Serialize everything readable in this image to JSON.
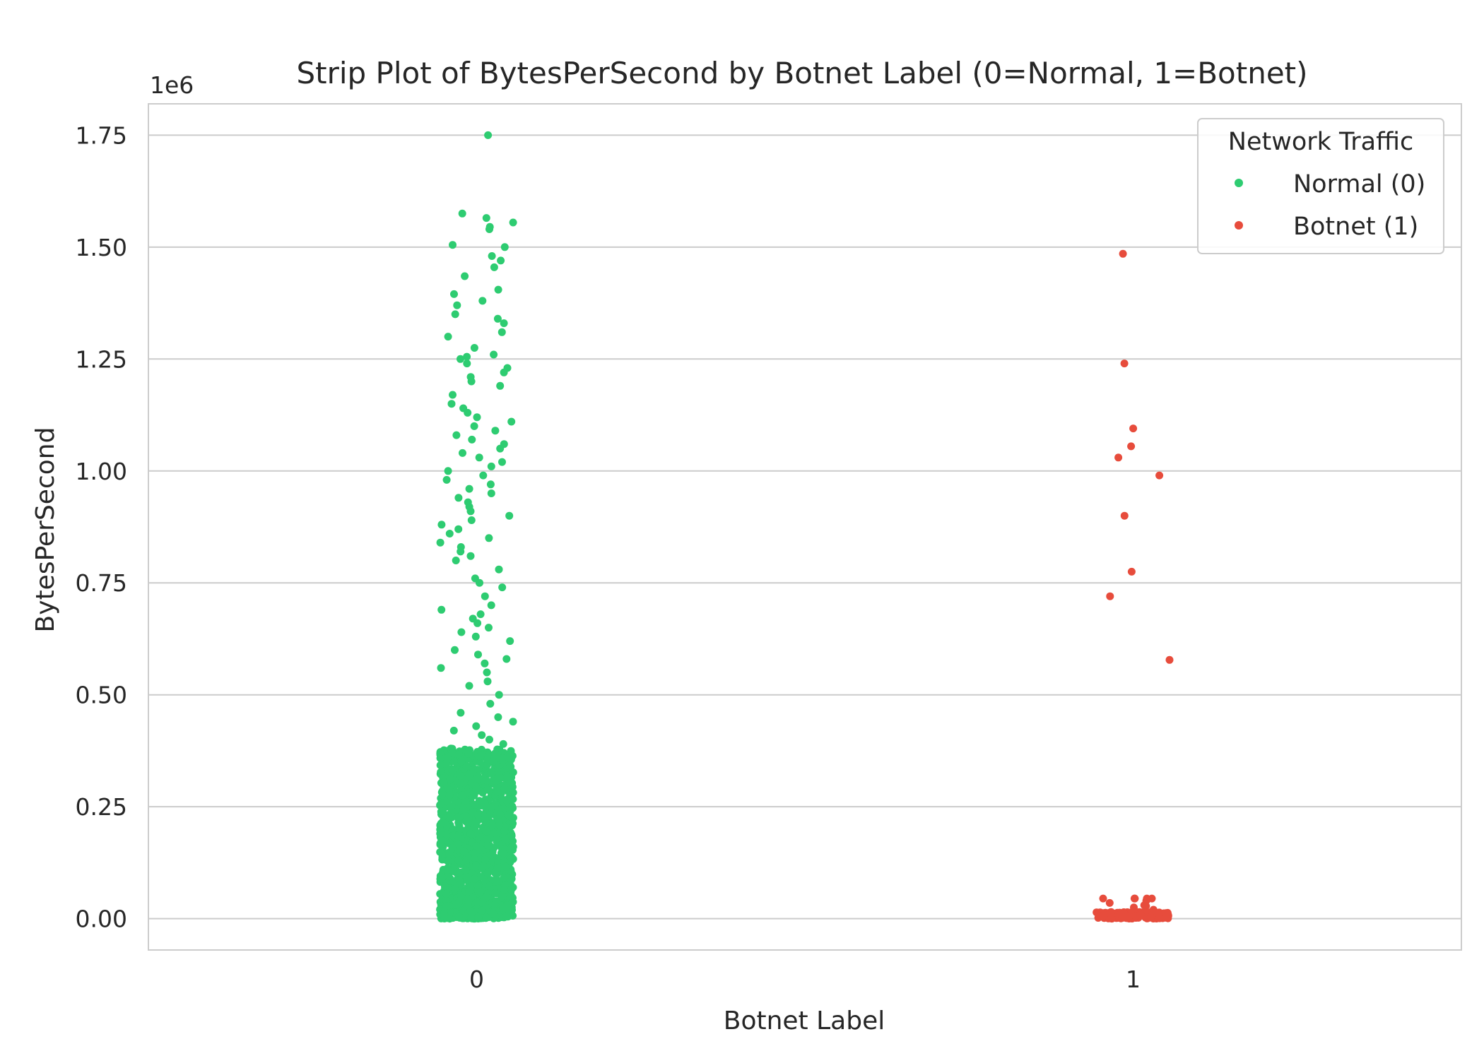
{
  "chart_data": {
    "type": "scatter",
    "subtype": "strip",
    "title": "Strip Plot of BytesPerSecond by Botnet Label (0=Normal, 1=Botnet)",
    "xlabel": "Botnet Label",
    "ylabel": "BytesPerSecond",
    "y_offset_label": "1e6",
    "y_scale_multiplier": 1000000,
    "categories": [
      "0",
      "1"
    ],
    "ylim": [
      -0.07,
      1.82
    ],
    "yticks": [
      0.0,
      0.25,
      0.5,
      0.75,
      1.0,
      1.25,
      1.5,
      1.75
    ],
    "ytick_labels": [
      "0.00",
      "0.25",
      "0.50",
      "0.75",
      "1.00",
      "1.25",
      "1.50",
      "1.75"
    ],
    "grid": "horizontal",
    "legend": {
      "title": "Network Traffic",
      "placement": "top-right",
      "entries": [
        "Normal (0)",
        "Botnet (1)"
      ]
    },
    "series": [
      {
        "name": "Normal (0)",
        "category": "0",
        "color": "#2ecc71",
        "values_sample": [
          1.75,
          1.575,
          1.565,
          1.555,
          1.545,
          1.54,
          1.505,
          1.5,
          1.48,
          1.47,
          1.455,
          1.435,
          1.405,
          1.395,
          1.38,
          1.37,
          1.35,
          1.34,
          1.33,
          1.31,
          1.3,
          1.275,
          1.26,
          1.255,
          1.25,
          1.24,
          1.23,
          1.22,
          1.21,
          1.2,
          1.19,
          1.17,
          1.15,
          1.14,
          1.13,
          1.12,
          1.11,
          1.1,
          1.09,
          1.08,
          1.07,
          1.06,
          1.05,
          1.04,
          1.03,
          1.02,
          1.01,
          1.0,
          0.99,
          0.98,
          0.97,
          0.96,
          0.95,
          0.94,
          0.93,
          0.92,
          0.91,
          0.9,
          0.89,
          0.88,
          0.87,
          0.86,
          0.85,
          0.84,
          0.83,
          0.82,
          0.81,
          0.8,
          0.78,
          0.76,
          0.75,
          0.74,
          0.72,
          0.7,
          0.69,
          0.68,
          0.67,
          0.66,
          0.65,
          0.64,
          0.63,
          0.62,
          0.6,
          0.59,
          0.58,
          0.57,
          0.56,
          0.55,
          0.53,
          0.52,
          0.5,
          0.48,
          0.46,
          0.45,
          0.44,
          0.43,
          0.42,
          0.41,
          0.4,
          0.39
        ],
        "dense_range": [
          0.0,
          0.38
        ]
      },
      {
        "name": "Botnet (1)",
        "category": "1",
        "color": "#e74c3c",
        "values": [
          1.485,
          1.24,
          1.095,
          1.055,
          1.03,
          0.99,
          0.9,
          0.775,
          0.72,
          0.578,
          0.045,
          0.045,
          0.045,
          0.045,
          0.045,
          0.04,
          0.035,
          0.03,
          0.028,
          0.025,
          0.02
        ],
        "dense_range": [
          0.0,
          0.015
        ]
      }
    ]
  }
}
